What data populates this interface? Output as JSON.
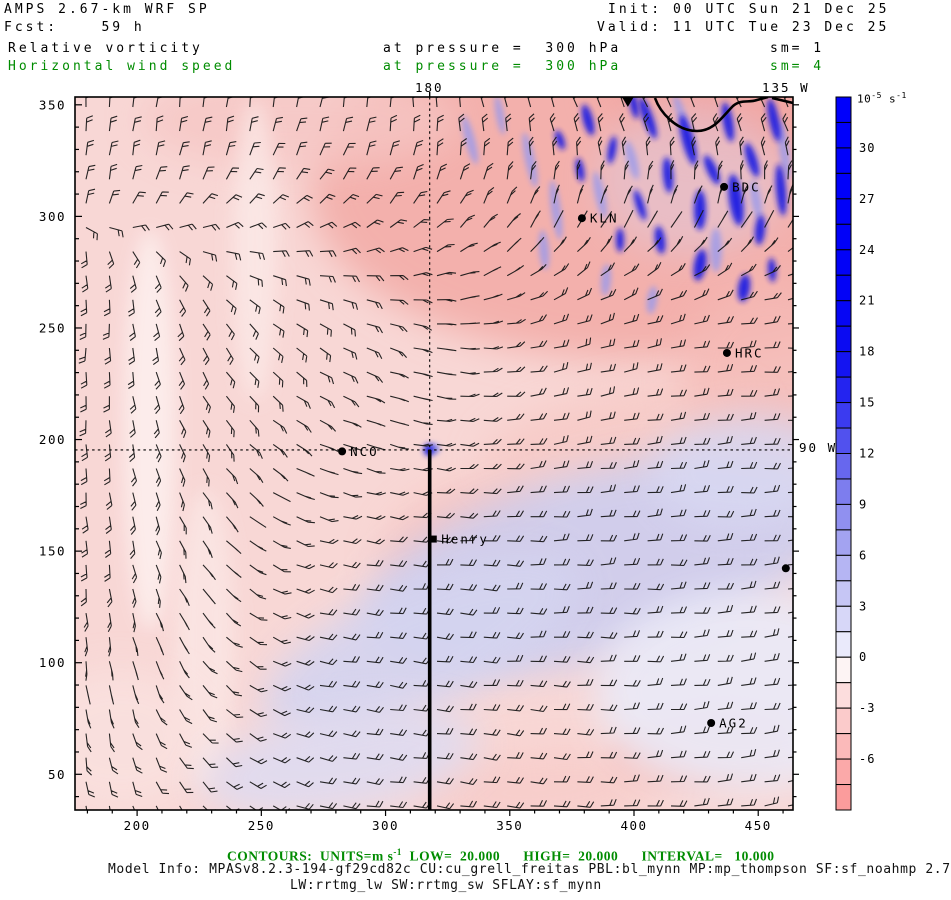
{
  "header": {
    "title": "AMPS 2.67-km WRF SP",
    "fcst": "Fcst:    59 h",
    "init": "Init: 00 UTC Sun 21 Dec 25",
    "valid": "Valid: 11 UTC Tue 23 Dec 25",
    "field1": {
      "name": "Relative vorticity",
      "at": "at pressure =  300 hPa",
      "sm": "sm= 1"
    },
    "field2": {
      "name": "Horizontal wind speed",
      "at": "at pressure =  300 hPa",
      "sm": "sm= 4"
    }
  },
  "geo": {
    "meridian_180": "180",
    "meridian_135w": "135 W",
    "meridian_90w": "90 W"
  },
  "footer": {
    "contours_prefix": "CONTOURS:  UNITS=m s",
    "contours_sup": "-1",
    "contours_rest": "  LOW=  20.000      HIGH=  20.000      INTERVAL=   10.000",
    "model_info": "Model Info: MPASv8.2.3-194-gf29cd82c CU:cu_grell_freitas PBL:bl_mynn MP:mp_thompson SF:sf_noahmp 2.7",
    "model_info2": "LW:rrtmg_lw SW:rrtmg_sw SFLAY:sf_mynn"
  },
  "colors": {
    "text_green": "#008c00",
    "text_black": "#000000",
    "barb": "#141414",
    "base_pink": "#f8d7d5",
    "deep_salmon": "#f3b0ac",
    "strong_blue": "#1a1ae2",
    "lavender": "#cdcdee"
  },
  "chart_data": {
    "type": "heatmap",
    "title": "Relative vorticity (shaded) and horizontal wind speed (barbs) at 300 hPa",
    "shaded_variable": "Relative vorticity",
    "shaded_units": "10^-5 s^-1",
    "barb_variable": "Horizontal wind speed",
    "barb_units": "m s^-1",
    "contour": {
      "low": "20.000",
      "high": "20.000",
      "interval": "10.000"
    },
    "x_ticks": [
      200,
      250,
      300,
      350,
      400,
      450
    ],
    "y_ticks": [
      350,
      300,
      250,
      200,
      150,
      100,
      50
    ],
    "x_range": [
      175,
      464
    ],
    "y_range": [
      34,
      353.5
    ],
    "grid": false,
    "legend_position": "right-colorbar",
    "colorbar": {
      "unit_base": "10",
      "unit_sup": "-5",
      "unit_mid": " s",
      "unit_sup2": "-1",
      "vmax": 33,
      "vmin": -9,
      "cell_size": 1.5,
      "tick_labels": [
        30,
        27,
        24,
        21,
        18,
        15,
        12,
        9,
        6,
        3,
        0,
        -3,
        -6
      ],
      "cells": [
        "#0000fb",
        "#0000fb",
        "#0000fa",
        "#0000fa",
        "#0101f8",
        "#0101f8",
        "#0202f7",
        "#0303f6",
        "#0606f4",
        "#0b0bf2",
        "#1414f1",
        "#2424f0",
        "#3b3bf0",
        "#5151ee",
        "#6767ee",
        "#7d7dee",
        "#9090f0",
        "#a3a3f1",
        "#b5b5f3",
        "#c6c6f5",
        "#d7d7f8",
        "#eaeafb",
        "#fdf4f4",
        "#fcdddd",
        "#fbcbcb",
        "#fbbaba",
        "#fba9a9",
        "#fb9c9c"
      ]
    },
    "stations": [
      {
        "name": "KLN",
        "marker": "circle",
        "fx": 0.706,
        "fy": 0.17
      },
      {
        "name": "BDC",
        "marker": "circle",
        "fx": 0.904,
        "fy": 0.126
      },
      {
        "name": "HRC",
        "marker": "circle",
        "fx": 0.908,
        "fy": 0.359
      },
      {
        "name": "NCO",
        "marker": "circle",
        "fx": 0.372,
        "fy": 0.497
      },
      {
        "name": "Henry",
        "marker": "square",
        "fx": 0.499,
        "fy": 0.62
      },
      {
        "name": "AG2",
        "marker": "circle",
        "fx": 0.886,
        "fy": 0.878
      },
      {
        "name": "",
        "marker": "circle",
        "fx": 0.99,
        "fy": 0.661
      },
      {
        "name": "",
        "marker": "triangle",
        "fx": 0.77,
        "fy": 0.004
      }
    ],
    "pole_cross": {
      "fx": 0.494,
      "fy": 0.495
    },
    "field_summary": "Weak negative (pink) relative vorticity dominates; filaments of strong positive vorticity (deep blue) fill the NE quadrant near the 20 m/s isotach; a broad lavender band of weak positive vorticity sweeps across the SE half; barbs show 10-20 m/s flow curving cyclonically about the pole crossing."
  }
}
